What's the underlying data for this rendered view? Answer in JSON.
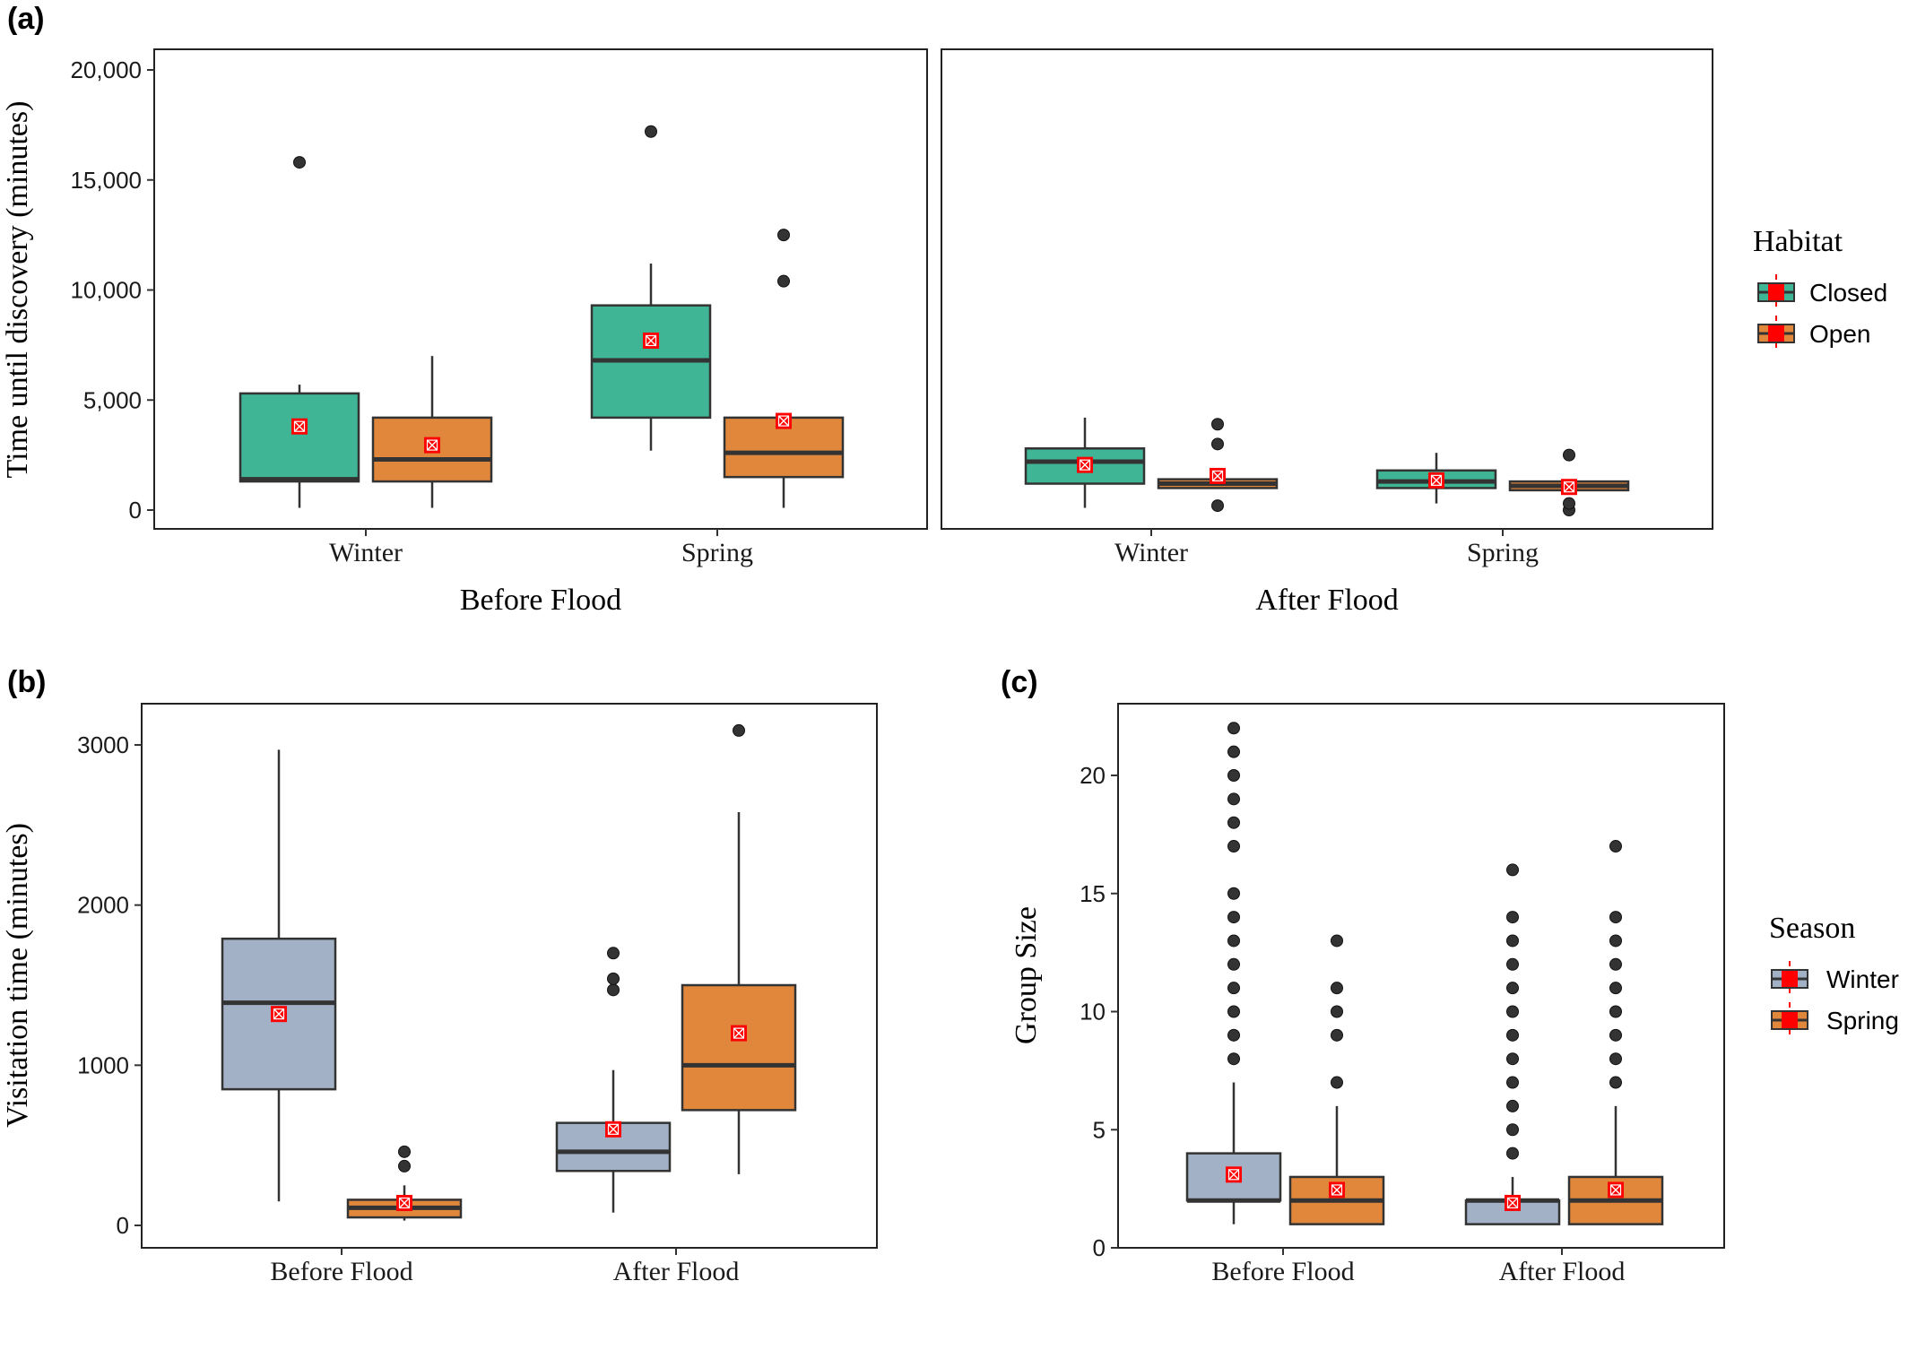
{
  "panels": {
    "a": {
      "label": "(a)"
    },
    "b": {
      "label": "(b)"
    },
    "c": {
      "label": "(c)"
    }
  },
  "colors": {
    "closed": "#3fb596",
    "open": "#e1873c",
    "winter": "#a3b1c6",
    "spring": "#e1873c",
    "mean_marker": "#ff0000",
    "outlier": "#333333",
    "box_stroke": "#333333"
  },
  "icons": {
    "mean_marker": "square-with-x",
    "outlier": "circle"
  },
  "chart_data": [
    {
      "id": "a",
      "type": "box",
      "ylabel": "Time until discovery (minutes)",
      "yticks": [
        0,
        5000,
        10000,
        15000,
        20000
      ],
      "ytick_labels": [
        "0",
        "5,000",
        "10,000",
        "15,000",
        "20,000"
      ],
      "ylim": [
        -800,
        21000
      ],
      "facets": [
        {
          "name": "Before Flood",
          "categories": [
            "Winter",
            "Spring"
          ],
          "groups": [
            {
              "category": "Winter",
              "habitat": "Closed",
              "whisker_low": 100,
              "q1": 1300,
              "median": 1400,
              "q3": 5300,
              "whisker_high": 5700,
              "mean": 3800,
              "outliers": [
                15800
              ]
            },
            {
              "category": "Winter",
              "habitat": "Open",
              "whisker_low": 100,
              "q1": 1300,
              "median": 2300,
              "q3": 4200,
              "whisker_high": 7000,
              "mean": 2950,
              "outliers": []
            },
            {
              "category": "Spring",
              "habitat": "Closed",
              "whisker_low": 2700,
              "q1": 4200,
              "median": 6800,
              "q3": 9300,
              "whisker_high": 11200,
              "mean": 7700,
              "outliers": [
                17200
              ]
            },
            {
              "category": "Spring",
              "habitat": "Open",
              "whisker_low": 100,
              "q1": 1500,
              "median": 2600,
              "q3": 4200,
              "whisker_high": 4300,
              "mean": 4050,
              "outliers": [
                10400,
                12500
              ]
            }
          ]
        },
        {
          "name": "After Flood",
          "categories": [
            "Winter",
            "Spring"
          ],
          "groups": [
            {
              "category": "Winter",
              "habitat": "Closed",
              "whisker_low": 100,
              "q1": 1200,
              "median": 2200,
              "q3": 2800,
              "whisker_high": 4200,
              "mean": 2050,
              "outliers": []
            },
            {
              "category": "Winter",
              "habitat": "Open",
              "whisker_low": 1000,
              "q1": 1000,
              "median": 1200,
              "q3": 1400,
              "whisker_high": 1500,
              "mean": 1550,
              "outliers": [
                200,
                3000,
                3900
              ]
            },
            {
              "category": "Spring",
              "habitat": "Closed",
              "whisker_low": 300,
              "q1": 1000,
              "median": 1300,
              "q3": 1800,
              "whisker_high": 2600,
              "mean": 1350,
              "outliers": []
            },
            {
              "category": "Spring",
              "habitat": "Open",
              "whisker_low": 800,
              "q1": 900,
              "median": 1100,
              "q3": 1300,
              "whisker_high": 1400,
              "mean": 1050,
              "outliers": [
                0,
                300,
                2500
              ]
            }
          ]
        }
      ],
      "legend": {
        "title": "Habitat",
        "entries": [
          "Closed",
          "Open"
        ],
        "position": "right"
      }
    },
    {
      "id": "b",
      "type": "box",
      "ylabel": "Visitation time (minutes)",
      "yticks": [
        0,
        1000,
        2000,
        3000
      ],
      "ytick_labels": [
        "0",
        "1000",
        "2000",
        "3000"
      ],
      "ylim": [
        -150,
        3250
      ],
      "categories": [
        "Before Flood",
        "After Flood"
      ],
      "groups": [
        {
          "category": "Before Flood",
          "season": "Winter",
          "whisker_low": 150,
          "q1": 850,
          "median": 1390,
          "q3": 1790,
          "whisker_high": 2970,
          "mean": 1320,
          "outliers": []
        },
        {
          "category": "Before Flood",
          "season": "Spring",
          "whisker_low": 30,
          "q1": 50,
          "median": 110,
          "q3": 160,
          "whisker_high": 250,
          "mean": 140,
          "outliers": [
            370,
            460
          ]
        },
        {
          "category": "After Flood",
          "season": "Winter",
          "whisker_low": 80,
          "q1": 340,
          "median": 460,
          "q3": 640,
          "whisker_high": 970,
          "mean": 600,
          "outliers": [
            1470,
            1540,
            1700
          ]
        },
        {
          "category": "After Flood",
          "season": "Spring",
          "whisker_low": 320,
          "q1": 720,
          "median": 1000,
          "q3": 1500,
          "whisker_high": 2580,
          "mean": 1200,
          "outliers": [
            3090
          ]
        }
      ]
    },
    {
      "id": "c",
      "type": "box",
      "ylabel": "Group Size",
      "yticks": [
        0,
        5,
        10,
        15,
        20
      ],
      "ytick_labels": [
        "0",
        "5",
        "10",
        "15",
        "20"
      ],
      "ylim": [
        0,
        22.5
      ],
      "categories": [
        "Before Flood",
        "After Flood"
      ],
      "groups": [
        {
          "category": "Before Flood",
          "season": "Winter",
          "whisker_low": 1,
          "q1": 2,
          "median": 2,
          "q3": 4,
          "whisker_high": 7,
          "mean": 3.1,
          "outliers": [
            8,
            9,
            10,
            11,
            12,
            13,
            14,
            15,
            17,
            18,
            19,
            20,
            21,
            22
          ]
        },
        {
          "category": "Before Flood",
          "season": "Spring",
          "whisker_low": 1,
          "q1": 1,
          "median": 2,
          "q3": 3,
          "whisker_high": 6,
          "mean": 2.45,
          "outliers": [
            7,
            9,
            10,
            11,
            13
          ]
        },
        {
          "category": "After Flood",
          "season": "Winter",
          "whisker_low": 1,
          "q1": 1,
          "median": 2,
          "q3": 2,
          "whisker_high": 3,
          "mean": 1.9,
          "outliers": [
            4,
            5,
            6,
            7,
            8,
            9,
            10,
            11,
            12,
            13,
            14,
            16
          ]
        },
        {
          "category": "After Flood",
          "season": "Spring",
          "whisker_low": 1,
          "q1": 1,
          "median": 2,
          "q3": 3,
          "whisker_high": 6,
          "mean": 2.45,
          "outliers": [
            7,
            8,
            9,
            10,
            11,
            12,
            13,
            14,
            17
          ]
        }
      ],
      "legend": {
        "title": "Season",
        "entries": [
          "Winter",
          "Spring"
        ],
        "position": "right"
      }
    }
  ]
}
